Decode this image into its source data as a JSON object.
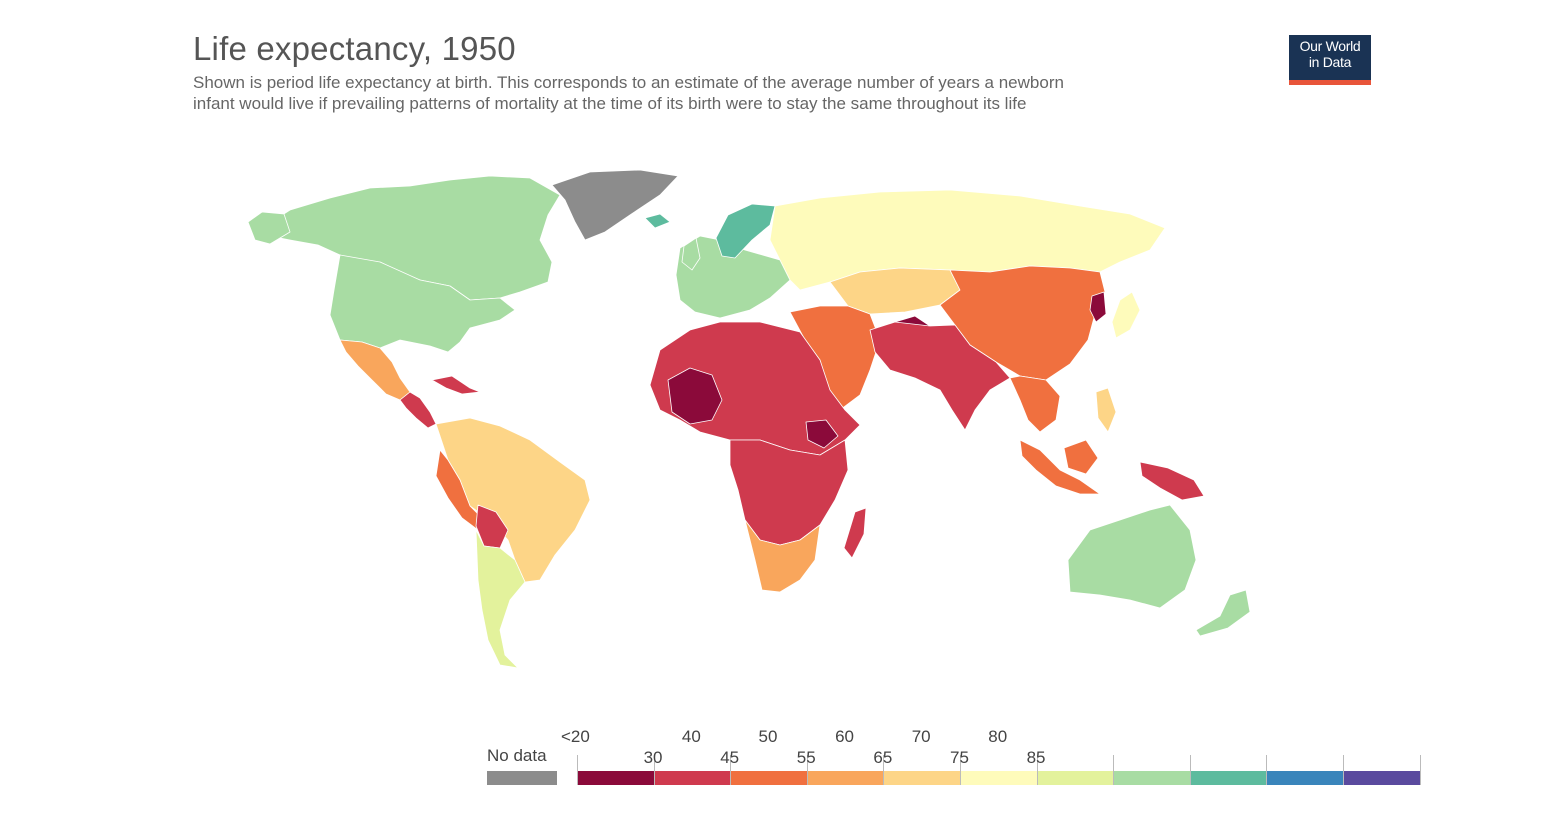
{
  "header": {
    "title": "Life expectancy, 1950",
    "subtitle_line1": "Shown is period life expectancy at birth. This corresponds to an estimate of the average number of years a newborn",
    "subtitle_line2": "infant would live if prevailing patterns of mortality at the time of its birth were to stay the same throughout its life"
  },
  "logo": {
    "line1": "Our World",
    "line2": "in Data",
    "bg": "#1a3354",
    "accent": "#e8553a"
  },
  "legend": {
    "no_data_label": "No data",
    "no_data_color": "#8c8c8c",
    "top_ticks": [
      "<20",
      "40",
      "50",
      "60",
      "70",
      "80"
    ],
    "bottom_ticks": [
      "30",
      "45",
      "55",
      "65",
      "75",
      "85"
    ],
    "bins": [
      {
        "range": "<20-30",
        "color": "#8b0a3a"
      },
      {
        "range": "30-40",
        "color": "#cf3a4e"
      },
      {
        "range": "40-45",
        "color": "#f0703f"
      },
      {
        "range": "45-50",
        "color": "#f9a65c"
      },
      {
        "range": "50-55",
        "color": "#fdd587"
      },
      {
        "range": "55-60",
        "color": "#fefbbb"
      },
      {
        "range": "60-65",
        "color": "#e3f29c"
      },
      {
        "range": "65-70",
        "color": "#a8dca3"
      },
      {
        "range": "70-75",
        "color": "#5dbb9e"
      },
      {
        "range": "75-80",
        "color": "#3a85bb"
      },
      {
        "range": "80-85",
        "color": "#5a4a9e"
      }
    ]
  },
  "regions": [
    {
      "name": "greenland",
      "color": "#8c8c8c"
    },
    {
      "name": "canada",
      "color": "#a8dca3"
    },
    {
      "name": "usa",
      "color": "#a8dca3"
    },
    {
      "name": "mexico",
      "color": "#f9a65c"
    },
    {
      "name": "central-america",
      "color": "#cf3a4e"
    },
    {
      "name": "south-america-north",
      "color": "#fdd587"
    },
    {
      "name": "peru",
      "color": "#f0703f"
    },
    {
      "name": "bolivia",
      "color": "#cf3a4e"
    },
    {
      "name": "argentina-chile",
      "color": "#e3f29c"
    },
    {
      "name": "europe-west",
      "color": "#a8dca3"
    },
    {
      "name": "scandinavia",
      "color": "#5dbb9e"
    },
    {
      "name": "russia",
      "color": "#fefbbb"
    },
    {
      "name": "central-asia",
      "color": "#fdd587"
    },
    {
      "name": "china",
      "color": "#f0703f"
    },
    {
      "name": "india",
      "color": "#cf3a4e"
    },
    {
      "name": "afghanistan",
      "color": "#8b0a3a"
    },
    {
      "name": "middle-east",
      "color": "#f0703f"
    },
    {
      "name": "north-africa",
      "color": "#cf3a4e"
    },
    {
      "name": "mali",
      "color": "#8b0a3a"
    },
    {
      "name": "central-africa",
      "color": "#cf3a4e"
    },
    {
      "name": "southern-africa",
      "color": "#f9a65c"
    },
    {
      "name": "madagascar",
      "color": "#cf3a4e"
    },
    {
      "name": "southeast-asia",
      "color": "#f0703f"
    },
    {
      "name": "indonesia",
      "color": "#f0703f"
    },
    {
      "name": "papua",
      "color": "#cf3a4e"
    },
    {
      "name": "japan",
      "color": "#fefbbb"
    },
    {
      "name": "australia",
      "color": "#a8dca3"
    },
    {
      "name": "new-zealand",
      "color": "#a8dca3"
    }
  ]
}
